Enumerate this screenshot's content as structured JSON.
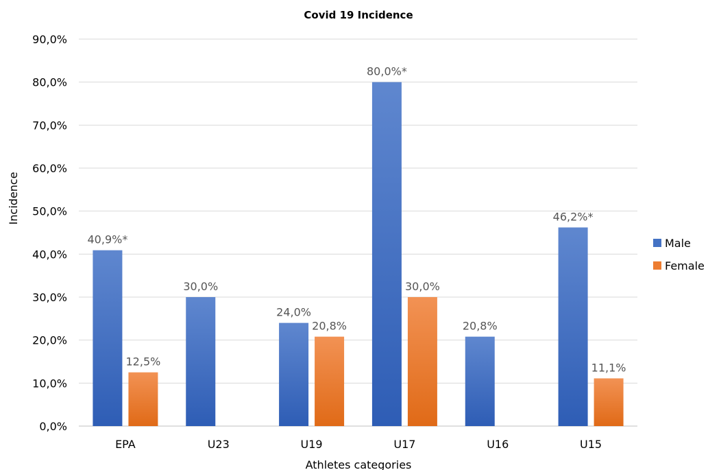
{
  "chart_data": {
    "type": "bar",
    "title": "Covid 19 Incidence",
    "xlabel": "Athletes categories",
    "ylabel": "Incidence",
    "categories": [
      "EPA",
      "U23",
      "U19",
      "U17",
      "U16",
      "U15"
    ],
    "ylim": [
      0,
      90
    ],
    "yticks": [
      0,
      10,
      20,
      30,
      40,
      50,
      60,
      70,
      80,
      90
    ],
    "ytick_labels": [
      "0,0%",
      "10,0%",
      "20,0%",
      "30,0%",
      "40,0%",
      "50,0%",
      "60,0%",
      "70,0%",
      "80,0%",
      "90,0%"
    ],
    "grid": true,
    "legend": "right",
    "series": [
      {
        "name": "Male",
        "color": "#4472c4",
        "values": [
          40.9,
          30.0,
          24.0,
          80.0,
          20.8,
          46.2
        ],
        "labels": [
          "40,9%*",
          "30,0%",
          "24,0%",
          "80,0%*",
          "20,8%",
          "46,2%*"
        ]
      },
      {
        "name": "Female",
        "color": "#ed7d31",
        "values": [
          12.5,
          null,
          20.8,
          30.0,
          null,
          11.1
        ],
        "labels": [
          "12,5%",
          "",
          "20,8%",
          "30,0%",
          "",
          "11,1%"
        ]
      }
    ]
  }
}
